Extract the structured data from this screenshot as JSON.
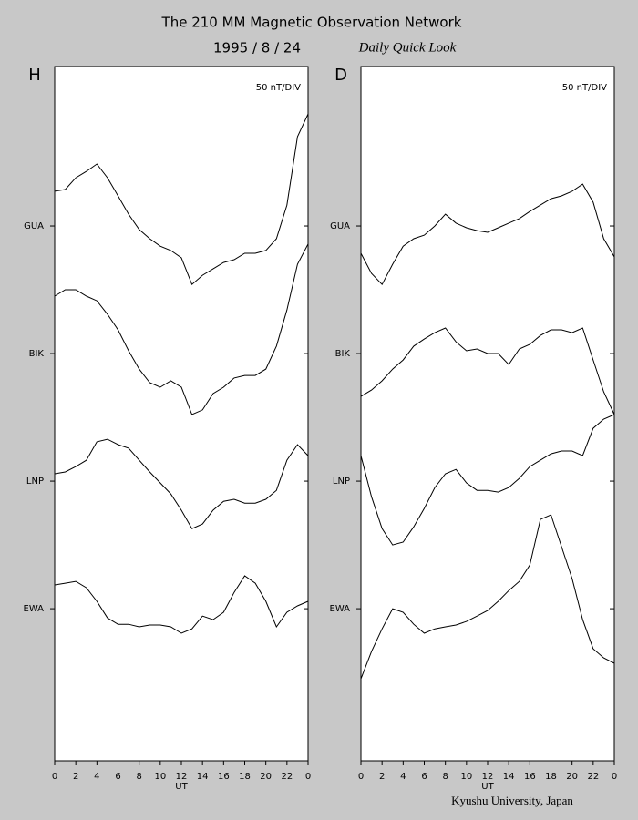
{
  "header": {
    "title": "The 210 MM Magnetic Observation Network",
    "date": "1995 /  8 / 24",
    "subtitle": "Daily Quick Look"
  },
  "footer": "Kyushu University, Japan",
  "chart_data": [
    {
      "type": "line",
      "label": "H",
      "annotation": "50 nT/DIV",
      "xlabel": "UT",
      "xlim": [
        0,
        24
      ],
      "xticks": [
        0,
        2,
        4,
        6,
        8,
        10,
        12,
        14,
        16,
        18,
        20,
        22,
        {
          "value": 24,
          "label": "0"
        }
      ],
      "ylim": [
        -9.6,
        262.5
      ],
      "yticks": [
        {
          "value": 200,
          "label": "GUA"
        },
        {
          "value": 150,
          "label": "BIK"
        },
        {
          "value": 100,
          "label": "LNP"
        },
        {
          "value": 50,
          "label": "EWA"
        }
      ],
      "x": [
        0,
        1,
        2,
        3,
        4,
        5,
        6,
        7,
        8,
        9,
        10,
        11,
        12,
        13,
        14,
        15,
        16,
        17,
        18,
        19,
        20,
        21,
        22,
        23,
        24
      ],
      "series": [
        {
          "color": "#000000",
          "values": [
            213.6,
            214.3,
            218.9,
            221.4,
            224.3,
            218.9,
            211.8,
            204.6,
            198.6,
            195,
            192.1,
            190.4,
            187.5,
            177.1,
            180.7,
            183.2,
            185.7,
            186.8,
            189.3,
            189.3,
            190.4,
            195,
            208.2,
            235,
            243.9
          ]
        },
        {
          "color": "#000000",
          "values": [
            172.5,
            175,
            175,
            172.5,
            170.7,
            165.4,
            159.3,
            151.1,
            143.9,
            138.6,
            136.8,
            139.3,
            136.8,
            126.1,
            127.9,
            134.3,
            136.8,
            140.4,
            141.4,
            141.4,
            143.9,
            152.9,
            167.1,
            185,
            192.9
          ]
        },
        {
          "color": "#000000",
          "values": [
            102.9,
            103.6,
            105.7,
            108.2,
            115.4,
            116.4,
            114.3,
            112.9,
            108.2,
            103.6,
            99.3,
            95,
            88.6,
            81.4,
            83.2,
            88.6,
            92.1,
            92.9,
            91.4,
            91.4,
            92.9,
            96.4,
            108.2,
            114.3,
            110
          ]
        },
        {
          "color": "#000000",
          "values": [
            59.3,
            60,
            60.7,
            58.2,
            52.9,
            46.4,
            43.9,
            43.9,
            42.9,
            43.6,
            43.6,
            42.9,
            40.4,
            42.1,
            47.1,
            45.7,
            48.6,
            56.4,
            62.9,
            60,
            52.9,
            42.9,
            48.6,
            51.1,
            52.9
          ]
        }
      ]
    },
    {
      "type": "line",
      "label": "D",
      "annotation": "50 nT/DIV",
      "xlabel": "UT",
      "xlim": [
        0,
        24
      ],
      "xticks": [
        0,
        2,
        4,
        6,
        8,
        10,
        12,
        14,
        16,
        18,
        20,
        22,
        {
          "value": 24,
          "label": "0"
        }
      ],
      "ylim": [
        -9.6,
        262.5
      ],
      "yticks": [
        {
          "value": 200,
          "label": "GUA"
        },
        {
          "value": 150,
          "label": "BIK"
        },
        {
          "value": 100,
          "label": "LNP"
        },
        {
          "value": 50,
          "label": "EWA"
        }
      ],
      "x": [
        0,
        1,
        2,
        3,
        4,
        5,
        6,
        7,
        8,
        9,
        10,
        11,
        12,
        13,
        14,
        15,
        16,
        17,
        18,
        19,
        20,
        21,
        22,
        23,
        24
      ],
      "series": [
        {
          "color": "#000000",
          "values": [
            189.3,
            181.4,
            177.1,
            185,
            192.1,
            195,
            196.4,
            200,
            204.6,
            201.1,
            199.3,
            198.2,
            197.5,
            199.3,
            201.1,
            202.9,
            205.7,
            208.2,
            210.7,
            211.8,
            213.6,
            216.4,
            209.3,
            195,
            187.9
          ]
        },
        {
          "color": "#000000",
          "values": [
            133.2,
            135.7,
            139.3,
            143.9,
            147.5,
            152.9,
            155.7,
            158.2,
            160,
            154.6,
            151.1,
            151.8,
            150,
            150,
            145.7,
            151.8,
            153.6,
            157.1,
            159.3,
            159.3,
            158.2,
            160,
            147.5,
            135,
            126.1
          ]
        },
        {
          "color": "#000000",
          "values": [
            110,
            93.9,
            81.4,
            75,
            76.1,
            82.1,
            89.3,
            97.5,
            102.9,
            104.6,
            99.3,
            96.4,
            96.4,
            95.7,
            97.5,
            101.1,
            105.7,
            108.2,
            110.7,
            111.8,
            111.8,
            110,
            120.7,
            124.3,
            126.1
          ]
        },
        {
          "color": "#000000",
          "values": [
            22.5,
            33.2,
            42.1,
            50,
            48.6,
            43.9,
            40.4,
            42.1,
            42.9,
            43.6,
            45,
            47.1,
            49.3,
            52.9,
            57.1,
            60.7,
            67.1,
            85,
            86.8,
            74.3,
            61.8,
            45.7,
            34.3,
            30.7,
            28.6
          ]
        }
      ]
    }
  ]
}
